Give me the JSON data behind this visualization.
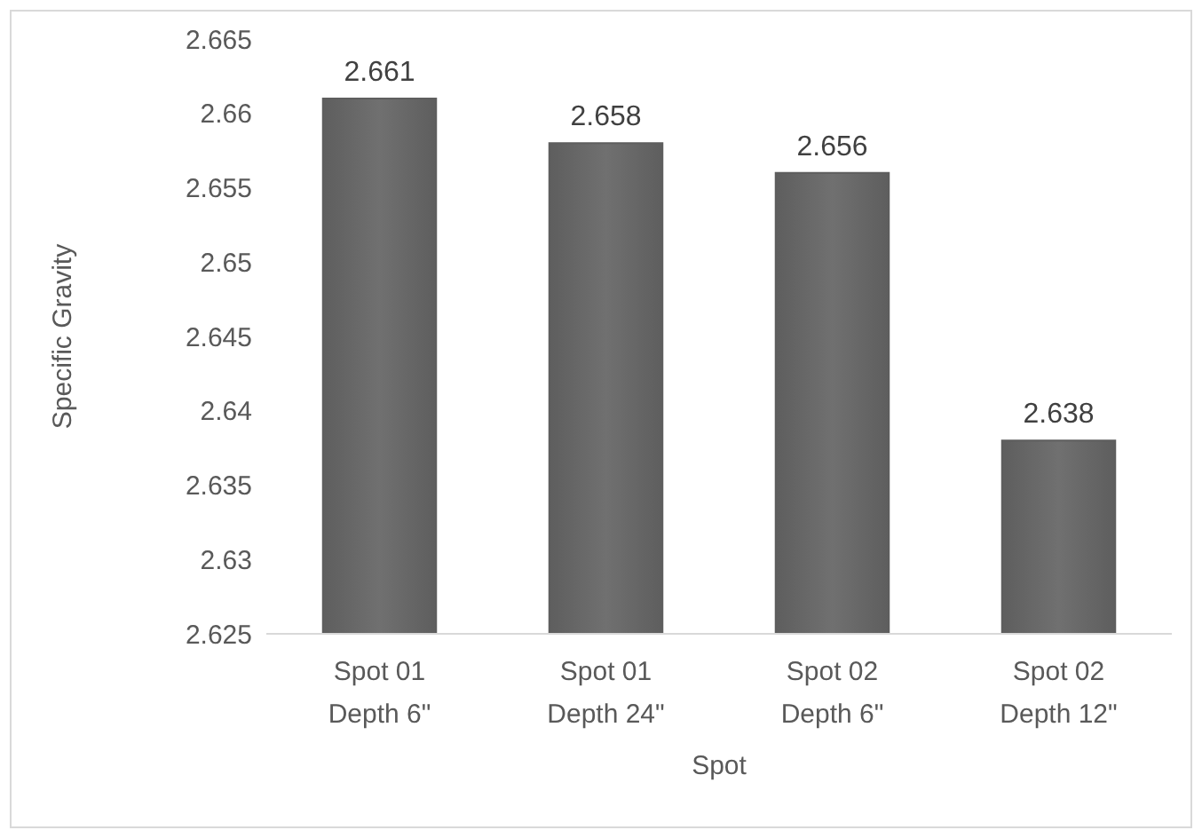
{
  "chart_data": {
    "type": "bar",
    "xlabel": "Spot",
    "ylabel": "Specific Gravity",
    "categories": [
      "Spot 01\nDepth 6\"",
      "Spot 01\nDepth 24\"",
      "Spot 02\nDepth 6\"",
      "Spot 02\nDepth 12\""
    ],
    "values": [
      2.661,
      2.658,
      2.656,
      2.638
    ],
    "color": "#5e5e5e",
    "ylim": [
      2.625,
      2.665
    ],
    "yticks": [
      {
        "value": 2.625,
        "label": "2.625"
      },
      {
        "value": 2.63,
        "label": "2.63"
      },
      {
        "value": 2.635,
        "label": "2.635"
      },
      {
        "value": 2.64,
        "label": "2.64"
      },
      {
        "value": 2.645,
        "label": "2.645"
      },
      {
        "value": 2.65,
        "label": "2.65"
      },
      {
        "value": 2.655,
        "label": "2.655"
      },
      {
        "value": 2.66,
        "label": "2.66"
      },
      {
        "value": 2.665,
        "label": "2.665"
      }
    ],
    "data_labels": true
  }
}
